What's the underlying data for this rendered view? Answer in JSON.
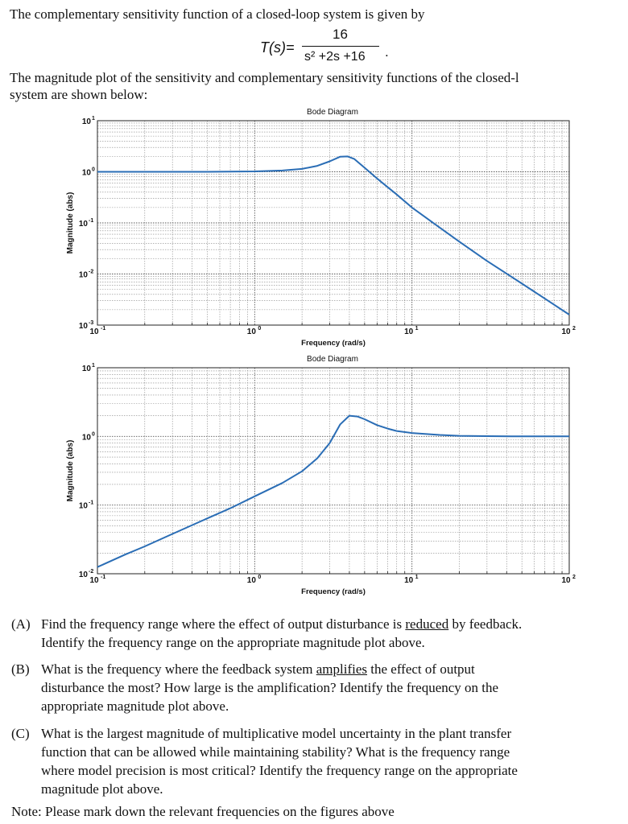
{
  "intro": {
    "line1": "The complementary sensitivity function of a closed-loop system is given by",
    "equation": {
      "lhs": "T(s)=",
      "numerator": "16",
      "denominator": "s² +2s +16",
      "trailing": "."
    },
    "line2": "The magnitude plot of the sensitivity and complementary sensitivity functions of the closed-l",
    "line3": "system are shown below:"
  },
  "chart_data": [
    {
      "type": "line",
      "title": "Bode Diagram",
      "xlabel": "Frequency (rad/s)",
      "ylabel": "Magnitude (abs)",
      "xscale": "log",
      "yscale": "log",
      "xlim": [
        0.1,
        100
      ],
      "ylim": [
        0.001,
        10
      ],
      "grid": true,
      "xticks": [
        "10⁻¹",
        "10⁰",
        "10¹",
        "10²"
      ],
      "yticks": [
        "10¹",
        "10⁰",
        "10⁻¹",
        "10⁻²",
        "10⁻³"
      ],
      "series": [
        {
          "color": "#2a6db5",
          "x": [
            0.1,
            0.2,
            0.5,
            1,
            1.5,
            2,
            2.5,
            3,
            3.5,
            3.9,
            4.3,
            5,
            6,
            8,
            10,
            15,
            20,
            30,
            50,
            70,
            100
          ],
          "y": [
            1.0,
            1.0,
            1.0,
            1.02,
            1.06,
            1.14,
            1.31,
            1.6,
            1.98,
            2.0,
            1.78,
            1.2,
            0.74,
            0.36,
            0.2,
            0.081,
            0.043,
            0.018,
            0.0065,
            0.0033,
            0.0016
          ]
        }
      ]
    },
    {
      "type": "line",
      "title": "Bode Diagram",
      "xlabel": "Frequency (rad/s)",
      "ylabel": "Magnitude (abs)",
      "xscale": "log",
      "yscale": "log",
      "xlim": [
        0.1,
        100
      ],
      "ylim": [
        0.01,
        10
      ],
      "grid": true,
      "xticks": [
        "10⁻¹",
        "10⁰",
        "10¹",
        "10²"
      ],
      "yticks": [
        "10¹",
        "10⁰",
        "10⁻¹",
        "10⁻²"
      ],
      "series": [
        {
          "color": "#2a6db5",
          "x": [
            0.1,
            0.15,
            0.2,
            0.3,
            0.5,
            0.7,
            1,
            1.5,
            2,
            2.5,
            3,
            3.5,
            4,
            4.5,
            5,
            6,
            7,
            8,
            10,
            15,
            20,
            30,
            50,
            100
          ],
          "y": [
            0.0125,
            0.019,
            0.025,
            0.038,
            0.064,
            0.09,
            0.134,
            0.21,
            0.31,
            0.48,
            0.8,
            1.5,
            2.0,
            1.95,
            1.78,
            1.46,
            1.3,
            1.2,
            1.12,
            1.05,
            1.02,
            1.01,
            1.0,
            1.0
          ]
        }
      ]
    }
  ],
  "questions": [
    {
      "label": "(A)",
      "lines": [
        [
          "Find the frequency range where the effect of output disturbance is ",
          "reduced",
          " by feedback."
        ],
        [
          "Identify the frequency range on the appropriate magnitude plot above.",
          "",
          ""
        ]
      ]
    },
    {
      "label": "(B)",
      "lines": [
        [
          "What is the frequency where the feedback system ",
          "amplifies",
          " the effect of output"
        ],
        [
          "disturbance the most? How large is the amplification?  Identify the frequency on the",
          "",
          ""
        ],
        [
          "appropriate magnitude plot above.",
          "",
          ""
        ]
      ]
    },
    {
      "label": "(C)",
      "lines": [
        [
          "What is the largest magnitude of multiplicative model uncertainty in the plant transfer",
          "",
          ""
        ],
        [
          "function that can be allowed while maintaining stability? What is the frequency range",
          "",
          ""
        ],
        [
          "where model precision is most critical?  Identify the frequency range on the appropriate",
          "",
          ""
        ],
        [
          "magnitude plot above.",
          "",
          ""
        ]
      ]
    }
  ],
  "note": "Note:  Please mark down the relevant frequencies on the figures above"
}
